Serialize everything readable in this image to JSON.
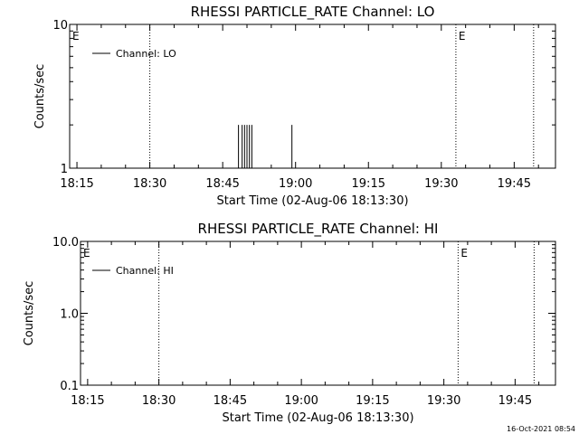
{
  "chart_data": [
    {
      "type": "line",
      "title": "RHESSI PARTICLE_RATE Channel: LO",
      "xlabel": "Start Time (02-Aug-06 18:13:30)",
      "ylabel": "Counts/sec",
      "yscale": "log",
      "ylim": [
        1,
        10
      ],
      "ytick_labels": [
        "1",
        "10"
      ],
      "xlim": [
        "18:13:30",
        "19:53:30"
      ],
      "xtick_labels": [
        "18:15",
        "18:30",
        "18:45",
        "19:00",
        "19:15",
        "19:30",
        "19:45"
      ],
      "grid": false,
      "legend": {
        "position": "top-left",
        "entries": [
          "Channel: LO"
        ]
      },
      "event_lines": [
        "18:30",
        "19:33",
        "19:49"
      ],
      "event_markers": [
        {
          "time": "18:13:30",
          "label": "E"
        },
        {
          "time": "19:33",
          "label": "E"
        }
      ],
      "series": [
        {
          "name": "Channel: LO",
          "x": [
            "18:48:00",
            "18:48:15",
            "18:48:30",
            "18:49:00",
            "18:49:15",
            "18:49:30",
            "18:49:45",
            "18:50:00",
            "18:50:15",
            "18:50:30",
            "18:50:45",
            "18:51:00",
            "18:51:15",
            "18:59:15",
            "18:59:30"
          ],
          "values": [
            1,
            2,
            1,
            2,
            1,
            2,
            1,
            2,
            1,
            2,
            1,
            2,
            1,
            2,
            1
          ]
        }
      ]
    },
    {
      "type": "line",
      "title": "RHESSI PARTICLE_RATE Channel: HI",
      "xlabel": "Start Time (02-Aug-06 18:13:30)",
      "ylabel": "Counts/sec",
      "yscale": "log",
      "ylim": [
        0.1,
        10
      ],
      "ytick_labels": [
        "0.1",
        "1.0",
        "10.0"
      ],
      "xlim": [
        "18:13:30",
        "19:53:30"
      ],
      "xtick_labels": [
        "18:15",
        "18:30",
        "18:45",
        "19:00",
        "19:15",
        "19:30",
        "19:45"
      ],
      "grid": false,
      "legend": {
        "position": "top-left",
        "entries": [
          "Channel: HI"
        ]
      },
      "event_lines": [
        "18:30",
        "19:33",
        "19:49"
      ],
      "event_markers": [
        {
          "time": "18:13:30",
          "label": "E"
        },
        {
          "time": "19:33",
          "label": "E"
        }
      ],
      "series": [
        {
          "name": "Channel: HI",
          "x": [],
          "values": []
        }
      ]
    }
  ],
  "footer": {
    "timestamp": "16-Oct-2021 08:54"
  }
}
